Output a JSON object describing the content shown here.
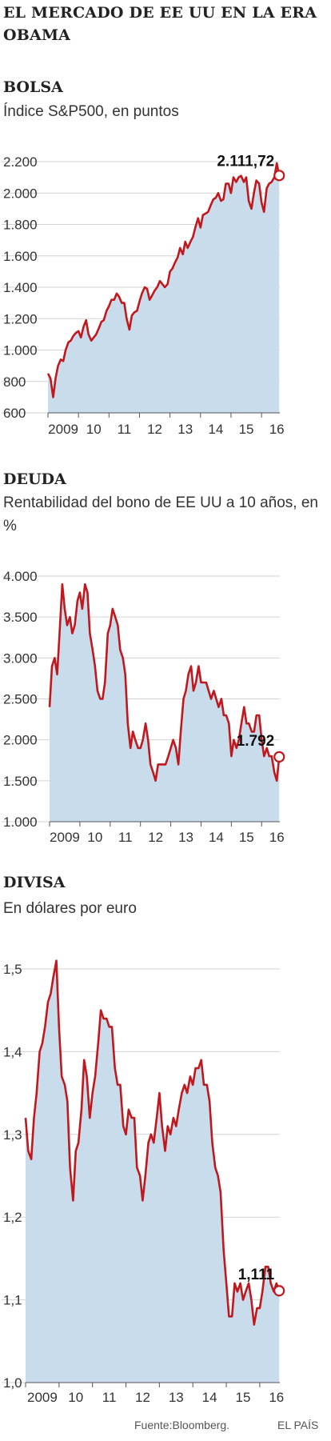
{
  "title": "EL MERCADO DE EE UU EN LA ERA OBAMA",
  "source": "Fuente:Bloomberg.",
  "brand": "EL PAÍS",
  "chart_data": [
    {
      "type": "area",
      "section": "BOLSA",
      "subtitle": "Índice S&P500, en puntos",
      "yticks": [
        "600",
        "800",
        "1.000",
        "1.200",
        "1.400",
        "1.600",
        "1.800",
        "2.000",
        "2.200"
      ],
      "yvalues": [
        600,
        800,
        1000,
        1200,
        1400,
        1600,
        1800,
        2000,
        2200
      ],
      "ylim": [
        600,
        2200
      ],
      "xticks": [
        "2009",
        "10",
        "11",
        "12",
        "13",
        "14",
        "15",
        "16"
      ],
      "xlim": [
        2009,
        2016.6
      ],
      "last_label": "2.111,72",
      "line_color": "#c0181c",
      "fill_color": "#c9dcec",
      "points": [
        [
          2009.0,
          850
        ],
        [
          2009.08,
          820
        ],
        [
          2009.17,
          700
        ],
        [
          2009.25,
          820
        ],
        [
          2009.33,
          900
        ],
        [
          2009.42,
          940
        ],
        [
          2009.5,
          930
        ],
        [
          2009.58,
          1000
        ],
        [
          2009.67,
          1050
        ],
        [
          2009.75,
          1060
        ],
        [
          2009.83,
          1090
        ],
        [
          2009.92,
          1110
        ],
        [
          2010.0,
          1120
        ],
        [
          2010.08,
          1080
        ],
        [
          2010.17,
          1150
        ],
        [
          2010.25,
          1190
        ],
        [
          2010.33,
          1100
        ],
        [
          2010.42,
          1060
        ],
        [
          2010.5,
          1080
        ],
        [
          2010.58,
          1100
        ],
        [
          2010.67,
          1140
        ],
        [
          2010.75,
          1180
        ],
        [
          2010.83,
          1190
        ],
        [
          2010.92,
          1250
        ],
        [
          2011.0,
          1280
        ],
        [
          2011.08,
          1320
        ],
        [
          2011.17,
          1320
        ],
        [
          2011.25,
          1360
        ],
        [
          2011.33,
          1340
        ],
        [
          2011.42,
          1300
        ],
        [
          2011.5,
          1300
        ],
        [
          2011.58,
          1200
        ],
        [
          2011.67,
          1130
        ],
        [
          2011.75,
          1220
        ],
        [
          2011.83,
          1240
        ],
        [
          2011.92,
          1250
        ],
        [
          2012.0,
          1310
        ],
        [
          2012.08,
          1360
        ],
        [
          2012.17,
          1400
        ],
        [
          2012.25,
          1390
        ],
        [
          2012.33,
          1320
        ],
        [
          2012.42,
          1350
        ],
        [
          2012.5,
          1380
        ],
        [
          2012.58,
          1400
        ],
        [
          2012.67,
          1440
        ],
        [
          2012.75,
          1420
        ],
        [
          2012.83,
          1400
        ],
        [
          2012.92,
          1420
        ],
        [
          2013.0,
          1500
        ],
        [
          2013.08,
          1520
        ],
        [
          2013.17,
          1560
        ],
        [
          2013.25,
          1590
        ],
        [
          2013.33,
          1650
        ],
        [
          2013.42,
          1610
        ],
        [
          2013.5,
          1690
        ],
        [
          2013.58,
          1650
        ],
        [
          2013.67,
          1690
        ],
        [
          2013.75,
          1720
        ],
        [
          2013.83,
          1780
        ],
        [
          2013.92,
          1840
        ],
        [
          2014.0,
          1780
        ],
        [
          2014.08,
          1860
        ],
        [
          2014.17,
          1870
        ],
        [
          2014.25,
          1880
        ],
        [
          2014.33,
          1920
        ],
        [
          2014.42,
          1960
        ],
        [
          2014.5,
          1970
        ],
        [
          2014.58,
          2000
        ],
        [
          2014.67,
          1950
        ],
        [
          2014.75,
          1960
        ],
        [
          2014.83,
          2060
        ],
        [
          2014.92,
          2060
        ],
        [
          2015.0,
          2000
        ],
        [
          2015.08,
          2100
        ],
        [
          2015.17,
          2070
        ],
        [
          2015.25,
          2100
        ],
        [
          2015.33,
          2110
        ],
        [
          2015.42,
          2070
        ],
        [
          2015.5,
          2100
        ],
        [
          2015.58,
          1950
        ],
        [
          2015.67,
          1900
        ],
        [
          2015.75,
          2000
        ],
        [
          2015.83,
          2080
        ],
        [
          2015.92,
          2060
        ],
        [
          2016.0,
          1940
        ],
        [
          2016.08,
          1880
        ],
        [
          2016.17,
          2030
        ],
        [
          2016.25,
          2060
        ],
        [
          2016.33,
          2070
        ],
        [
          2016.42,
          2100
        ],
        [
          2016.5,
          2190
        ],
        [
          2016.58,
          2111.72
        ]
      ]
    },
    {
      "type": "area",
      "section": "DEUDA",
      "subtitle": "Rentabilidad del bono de EE UU a 10 años, en %",
      "yticks": [
        "1.000",
        "1.500",
        "2.000",
        "2.500",
        "3.000",
        "3.500",
        "4.000"
      ],
      "yvalues": [
        1.0,
        1.5,
        2.0,
        2.5,
        3.0,
        3.5,
        4.0
      ],
      "ylim": [
        1.0,
        4.0
      ],
      "xticks": [
        "2009",
        "10",
        "11",
        "12",
        "13",
        "14",
        "15",
        "16"
      ],
      "xlim": [
        2009,
        2016.6
      ],
      "last_label": "1.792",
      "line_color": "#c0181c",
      "fill_color": "#c9dcec",
      "points": [
        [
          2009.0,
          2.4
        ],
        [
          2009.08,
          2.9
        ],
        [
          2009.17,
          3.0
        ],
        [
          2009.25,
          2.8
        ],
        [
          2009.33,
          3.3
        ],
        [
          2009.42,
          3.9
        ],
        [
          2009.5,
          3.6
        ],
        [
          2009.58,
          3.4
        ],
        [
          2009.67,
          3.5
        ],
        [
          2009.75,
          3.3
        ],
        [
          2009.83,
          3.4
        ],
        [
          2009.92,
          3.7
        ],
        [
          2010.0,
          3.8
        ],
        [
          2010.08,
          3.6
        ],
        [
          2010.17,
          3.9
        ],
        [
          2010.25,
          3.8
        ],
        [
          2010.33,
          3.3
        ],
        [
          2010.42,
          3.1
        ],
        [
          2010.5,
          2.9
        ],
        [
          2010.58,
          2.6
        ],
        [
          2010.67,
          2.5
        ],
        [
          2010.75,
          2.5
        ],
        [
          2010.83,
          2.7
        ],
        [
          2010.92,
          3.3
        ],
        [
          2011.0,
          3.4
        ],
        [
          2011.08,
          3.6
        ],
        [
          2011.17,
          3.5
        ],
        [
          2011.25,
          3.4
        ],
        [
          2011.33,
          3.1
        ],
        [
          2011.42,
          3.0
        ],
        [
          2011.5,
          2.8
        ],
        [
          2011.58,
          2.2
        ],
        [
          2011.67,
          1.9
        ],
        [
          2011.75,
          2.1
        ],
        [
          2011.83,
          2.0
        ],
        [
          2011.92,
          1.9
        ],
        [
          2012.0,
          1.9
        ],
        [
          2012.08,
          2.0
        ],
        [
          2012.17,
          2.2
        ],
        [
          2012.25,
          2.0
        ],
        [
          2012.33,
          1.7
        ],
        [
          2012.42,
          1.6
        ],
        [
          2012.5,
          1.5
        ],
        [
          2012.58,
          1.7
        ],
        [
          2012.67,
          1.7
        ],
        [
          2012.75,
          1.7
        ],
        [
          2012.83,
          1.7
        ],
        [
          2012.92,
          1.8
        ],
        [
          2013.0,
          1.9
        ],
        [
          2013.08,
          2.0
        ],
        [
          2013.17,
          1.9
        ],
        [
          2013.25,
          1.7
        ],
        [
          2013.33,
          2.1
        ],
        [
          2013.42,
          2.5
        ],
        [
          2013.5,
          2.6
        ],
        [
          2013.58,
          2.8
        ],
        [
          2013.67,
          2.9
        ],
        [
          2013.75,
          2.6
        ],
        [
          2013.83,
          2.7
        ],
        [
          2013.92,
          2.9
        ],
        [
          2014.0,
          2.7
        ],
        [
          2014.08,
          2.7
        ],
        [
          2014.17,
          2.7
        ],
        [
          2014.25,
          2.6
        ],
        [
          2014.33,
          2.5
        ],
        [
          2014.42,
          2.6
        ],
        [
          2014.5,
          2.5
        ],
        [
          2014.58,
          2.4
        ],
        [
          2014.67,
          2.5
        ],
        [
          2014.75,
          2.3
        ],
        [
          2014.83,
          2.3
        ],
        [
          2014.92,
          2.2
        ],
        [
          2015.0,
          1.8
        ],
        [
          2015.08,
          2.0
        ],
        [
          2015.17,
          1.9
        ],
        [
          2015.25,
          2.0
        ],
        [
          2015.33,
          2.2
        ],
        [
          2015.42,
          2.4
        ],
        [
          2015.5,
          2.2
        ],
        [
          2015.58,
          2.2
        ],
        [
          2015.67,
          2.1
        ],
        [
          2015.75,
          2.1
        ],
        [
          2015.83,
          2.3
        ],
        [
          2015.92,
          2.3
        ],
        [
          2016.0,
          2.0
        ],
        [
          2016.08,
          1.8
        ],
        [
          2016.17,
          1.9
        ],
        [
          2016.25,
          1.8
        ],
        [
          2016.33,
          1.8
        ],
        [
          2016.42,
          1.6
        ],
        [
          2016.5,
          1.5
        ],
        [
          2016.58,
          1.792
        ]
      ]
    },
    {
      "type": "area",
      "section": "DIVISA",
      "subtitle": "En dólares por euro",
      "yticks": [
        "1,0",
        "1,1",
        "1,2",
        "1,3",
        "1,4",
        "1,5"
      ],
      "yvalues": [
        1.0,
        1.1,
        1.2,
        1.3,
        1.4,
        1.5
      ],
      "ylim": [
        1.0,
        1.53
      ],
      "xticks": [
        "2009",
        "10",
        "11",
        "12",
        "13",
        "14",
        "15",
        "16"
      ],
      "xlim": [
        2009,
        2016.6
      ],
      "last_label": "1,111",
      "line_color": "#c0181c",
      "fill_color": "#c9dcec",
      "points": [
        [
          2009.0,
          1.32
        ],
        [
          2009.08,
          1.28
        ],
        [
          2009.17,
          1.27
        ],
        [
          2009.25,
          1.32
        ],
        [
          2009.33,
          1.35
        ],
        [
          2009.42,
          1.4
        ],
        [
          2009.5,
          1.41
        ],
        [
          2009.58,
          1.43
        ],
        [
          2009.67,
          1.46
        ],
        [
          2009.75,
          1.47
        ],
        [
          2009.83,
          1.49
        ],
        [
          2009.92,
          1.51
        ],
        [
          2010.0,
          1.43
        ],
        [
          2010.08,
          1.37
        ],
        [
          2010.17,
          1.36
        ],
        [
          2010.25,
          1.34
        ],
        [
          2010.33,
          1.26
        ],
        [
          2010.42,
          1.22
        ],
        [
          2010.5,
          1.28
        ],
        [
          2010.58,
          1.29
        ],
        [
          2010.67,
          1.33
        ],
        [
          2010.75,
          1.39
        ],
        [
          2010.83,
          1.37
        ],
        [
          2010.92,
          1.32
        ],
        [
          2011.0,
          1.35
        ],
        [
          2011.08,
          1.37
        ],
        [
          2011.17,
          1.41
        ],
        [
          2011.25,
          1.45
        ],
        [
          2011.33,
          1.44
        ],
        [
          2011.42,
          1.44
        ],
        [
          2011.5,
          1.43
        ],
        [
          2011.58,
          1.43
        ],
        [
          2011.67,
          1.38
        ],
        [
          2011.75,
          1.36
        ],
        [
          2011.83,
          1.36
        ],
        [
          2011.92,
          1.31
        ],
        [
          2012.0,
          1.3
        ],
        [
          2012.08,
          1.33
        ],
        [
          2012.17,
          1.32
        ],
        [
          2012.25,
          1.32
        ],
        [
          2012.33,
          1.26
        ],
        [
          2012.42,
          1.25
        ],
        [
          2012.5,
          1.22
        ],
        [
          2012.58,
          1.25
        ],
        [
          2012.67,
          1.29
        ],
        [
          2012.75,
          1.3
        ],
        [
          2012.83,
          1.29
        ],
        [
          2012.92,
          1.32
        ],
        [
          2013.0,
          1.35
        ],
        [
          2013.08,
          1.31
        ],
        [
          2013.17,
          1.28
        ],
        [
          2013.25,
          1.31
        ],
        [
          2013.33,
          1.3
        ],
        [
          2013.42,
          1.32
        ],
        [
          2013.5,
          1.31
        ],
        [
          2013.58,
          1.33
        ],
        [
          2013.67,
          1.35
        ],
        [
          2013.75,
          1.36
        ],
        [
          2013.83,
          1.35
        ],
        [
          2013.92,
          1.37
        ],
        [
          2014.0,
          1.36
        ],
        [
          2014.08,
          1.38
        ],
        [
          2014.17,
          1.38
        ],
        [
          2014.25,
          1.39
        ],
        [
          2014.33,
          1.36
        ],
        [
          2014.42,
          1.36
        ],
        [
          2014.5,
          1.34
        ],
        [
          2014.58,
          1.29
        ],
        [
          2014.67,
          1.26
        ],
        [
          2014.75,
          1.25
        ],
        [
          2014.83,
          1.23
        ],
        [
          2014.92,
          1.16
        ],
        [
          2015.0,
          1.12
        ],
        [
          2015.08,
          1.08
        ],
        [
          2015.17,
          1.08
        ],
        [
          2015.25,
          1.12
        ],
        [
          2015.33,
          1.11
        ],
        [
          2015.42,
          1.12
        ],
        [
          2015.5,
          1.1
        ],
        [
          2015.58,
          1.11
        ],
        [
          2015.67,
          1.12
        ],
        [
          2015.75,
          1.1
        ],
        [
          2015.83,
          1.07
        ],
        [
          2015.92,
          1.09
        ],
        [
          2016.0,
          1.09
        ],
        [
          2016.08,
          1.11
        ],
        [
          2016.17,
          1.14
        ],
        [
          2016.25,
          1.14
        ],
        [
          2016.33,
          1.12
        ],
        [
          2016.42,
          1.11
        ],
        [
          2016.5,
          1.12
        ],
        [
          2016.58,
          1.111
        ]
      ]
    }
  ]
}
